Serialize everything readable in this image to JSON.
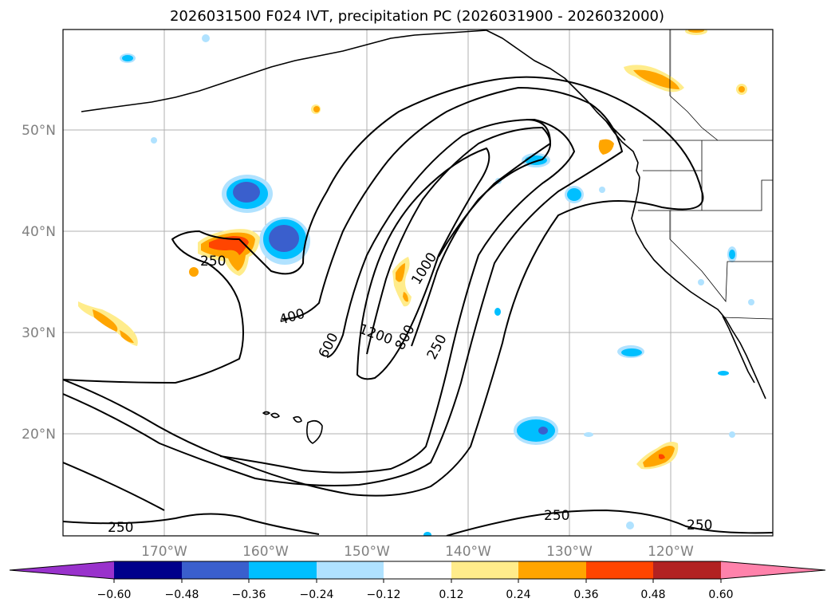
{
  "title": "2026031500 F024 IVT, precipitation PC (2026031900 - 2026032000)",
  "lat_labels": [
    "50°N",
    "40°N",
    "30°N",
    "20°N"
  ],
  "lon_labels": [
    "170°W",
    "160°W",
    "150°W",
    "140°W",
    "130°W",
    "120°W"
  ],
  "contour_labels": [
    "250",
    "400",
    "600",
    "1200",
    "800",
    "1000",
    "250",
    "250",
    "250",
    "250"
  ],
  "colorbar": {
    "ticks": [
      "−0.60",
      "−0.48",
      "−0.36",
      "−0.24",
      "−0.12",
      "0.12",
      "0.24",
      "0.36",
      "0.48",
      "0.60"
    ],
    "colors": [
      "#9932cc",
      "#00008b",
      "#3a5fcd",
      "#00bfff",
      "#b0e2ff",
      "#ffffff",
      "#ffec8b",
      "#ffa500",
      "#ff4500",
      "#b22222",
      "#ff82ab"
    ]
  }
}
